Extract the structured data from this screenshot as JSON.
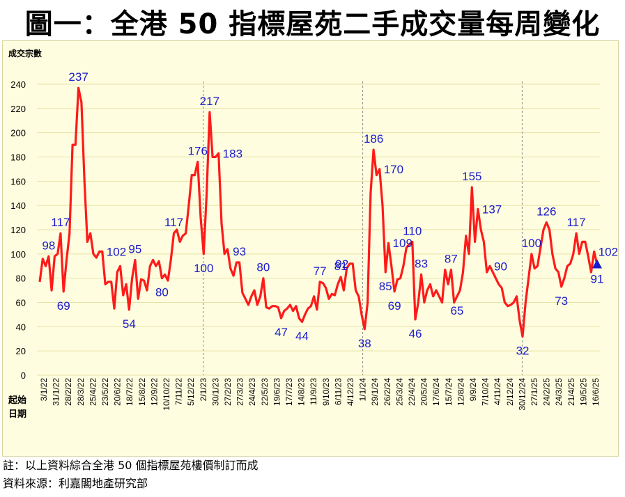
{
  "title": "圖一：全港 50 指標屋苑二手成交量每周變化",
  "notes": {
    "note1": "註：以上資料綜合全港 50 個指標屋苑樓價制訂而成",
    "note2": "資料來源：利嘉閣地產研究部"
  },
  "colors": {
    "line": "#ff1a1a",
    "labels": "#1a1acc",
    "background": "#fefddf",
    "gridline": "#e6e3a8",
    "end_marker": "#1a1acc"
  },
  "chart_data": {
    "type": "line",
    "ylabel": "成交宗數",
    "xlabel": "起始日期",
    "ylim": [
      0,
      240
    ],
    "yticks": [
      0,
      20,
      40,
      60,
      80,
      100,
      120,
      140,
      160,
      180,
      200,
      220,
      240
    ],
    "grid": true,
    "xtick_labels": [
      "3/1/22",
      "31/1/22",
      "28/2/22",
      "28/3/22",
      "25/4/22",
      "23/5/22",
      "20/6/22",
      "18/7/22",
      "15/8/22",
      "12/9/22",
      "10/10/22",
      "7/11/22",
      "5/12/22",
      "2/1/23",
      "30/1/23",
      "27/2/23",
      "27/3/23",
      "24/4/23",
      "22/5/23",
      "19/6/23",
      "17/7/23",
      "14/8/23",
      "11/9/23",
      "9/10/23",
      "6/11/23",
      "4/12/23",
      "1/1/24",
      "29/1/24",
      "26/2/24",
      "25/3/24",
      "22/4/24",
      "20/5/24",
      "17/6/24",
      "15/7/24",
      "12/8/24",
      "9/9/24",
      "7/10/24",
      "4/11/24",
      "2/12/24",
      "30/12/24",
      "27/1/25",
      "24/2/25",
      "24/3/25",
      "21/4/25",
      "19/5/25",
      "16/6/25"
    ],
    "year_dividers": [
      "2/1/23",
      "1/1/24",
      "30/12/24"
    ],
    "series": [
      {
        "values": [
          77,
          96,
          90,
          98,
          70,
          98,
          100,
          117,
          69,
          95,
          117,
          190,
          190,
          237,
          225,
          160,
          110,
          117,
          100,
          97,
          102,
          102,
          75,
          77,
          77,
          55,
          85,
          90,
          66,
          75,
          54,
          80,
          95,
          63,
          79,
          78,
          70,
          90,
          95,
          90,
          94,
          80,
          83,
          78,
          95,
          117,
          120,
          110,
          115,
          117,
          140,
          165,
          165,
          176,
          130,
          100,
          150,
          217,
          180,
          180,
          183,
          125,
          100,
          104,
          88,
          82,
          93,
          93,
          68,
          63,
          58,
          65,
          70,
          58,
          65,
          80,
          56,
          55,
          57,
          57,
          56,
          47,
          53,
          55,
          58,
          53,
          57,
          47,
          44,
          50,
          55,
          57,
          65,
          54,
          77,
          76,
          72,
          63,
          67,
          66,
          75,
          81,
          70,
          88,
          92,
          92,
          70,
          65,
          50,
          38,
          60,
          150,
          186,
          165,
          170,
          140,
          85,
          109,
          90,
          69,
          79,
          80,
          90,
          105,
          108,
          110,
          46,
          60,
          83,
          60,
          70,
          75,
          65,
          70,
          65,
          60,
          87,
          75,
          87,
          60,
          65,
          70,
          85,
          115,
          100,
          155,
          110,
          137,
          120,
          110,
          85,
          90,
          85,
          80,
          75,
          72,
          60,
          57,
          58,
          60,
          65,
          45,
          32,
          60,
          80,
          100,
          88,
          90,
          105,
          120,
          126,
          120,
          100,
          88,
          85,
          73,
          80,
          90,
          92,
          100,
          117,
          100,
          110,
          110,
          98,
          85,
          102,
          91
        ]
      }
    ],
    "annotations": [
      {
        "text": "98",
        "index": 3,
        "pos": "above"
      },
      {
        "text": "117",
        "index": 7,
        "pos": "above"
      },
      {
        "text": "69",
        "index": 8,
        "pos": "below"
      },
      {
        "text": "237",
        "index": 13,
        "pos": "above"
      },
      {
        "text": "102",
        "index": 21,
        "pos": "right"
      },
      {
        "text": "54",
        "index": 30,
        "pos": "below"
      },
      {
        "text": "95",
        "index": 32,
        "pos": "above"
      },
      {
        "text": "80",
        "index": 41,
        "pos": "below"
      },
      {
        "text": "117",
        "index": 45,
        "pos": "above"
      },
      {
        "text": "176",
        "index": 53,
        "pos": "above"
      },
      {
        "text": "100",
        "index": 55,
        "pos": "below"
      },
      {
        "text": "217",
        "index": 57,
        "pos": "above"
      },
      {
        "text": "183",
        "index": 60,
        "pos": "right"
      },
      {
        "text": "93",
        "index": 67,
        "pos": "above"
      },
      {
        "text": "80",
        "index": 75,
        "pos": "above"
      },
      {
        "text": "47",
        "index": 81,
        "pos": "below"
      },
      {
        "text": "44",
        "index": 88,
        "pos": "below"
      },
      {
        "text": "77",
        "index": 94,
        "pos": "above"
      },
      {
        "text": "81",
        "index": 101,
        "pos": "above"
      },
      {
        "text": "92",
        "index": 105,
        "pos": "left"
      },
      {
        "text": "38",
        "index": 109,
        "pos": "below"
      },
      {
        "text": "186",
        "index": 112,
        "pos": "above"
      },
      {
        "text": "170",
        "index": 114,
        "pos": "right"
      },
      {
        "text": "85",
        "index": 116,
        "pos": "below"
      },
      {
        "text": "109",
        "index": 117,
        "pos": "right"
      },
      {
        "text": "69",
        "index": 119,
        "pos": "below"
      },
      {
        "text": "110",
        "index": 125,
        "pos": "above"
      },
      {
        "text": "46",
        "index": 126,
        "pos": "below"
      },
      {
        "text": "83",
        "index": 128,
        "pos": "above"
      },
      {
        "text": "87",
        "index": 138,
        "pos": "above"
      },
      {
        "text": "65",
        "index": 140,
        "pos": "below"
      },
      {
        "text": "155",
        "index": 145,
        "pos": "above"
      },
      {
        "text": "137",
        "index": 147,
        "pos": "right"
      },
      {
        "text": "90",
        "index": 151,
        "pos": "right"
      },
      {
        "text": "32",
        "index": 162,
        "pos": "below"
      },
      {
        "text": "100",
        "index": 165,
        "pos": "above"
      },
      {
        "text": "126",
        "index": 170,
        "pos": "above"
      },
      {
        "text": "73",
        "index": 175,
        "pos": "below"
      },
      {
        "text": "117",
        "index": 180,
        "pos": "above"
      },
      {
        "text": "102",
        "index": 186,
        "pos": "right"
      },
      {
        "text": "91",
        "index": 187,
        "pos": "below"
      }
    ]
  }
}
